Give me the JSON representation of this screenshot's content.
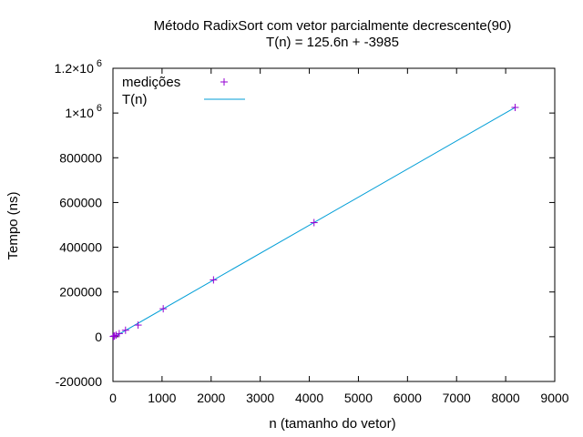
{
  "chart_data": {
    "type": "scatter",
    "title": "Método RadixSort com vetor parcialmente decrescente(90)",
    "subtitle": "T(n) = 125.6n + -3985",
    "xlabel": "n (tamanho do vetor)",
    "ylabel": "Tempo (ns)",
    "xlim": [
      0,
      9000
    ],
    "ylim": [
      -200000,
      1200000
    ],
    "x_ticks": [
      {
        "value": 0,
        "label": "0"
      },
      {
        "value": 1000,
        "label": "1000"
      },
      {
        "value": 2000,
        "label": "2000"
      },
      {
        "value": 3000,
        "label": "3000"
      },
      {
        "value": 4000,
        "label": "4000"
      },
      {
        "value": 5000,
        "label": "5000"
      },
      {
        "value": 6000,
        "label": "6000"
      },
      {
        "value": 7000,
        "label": "7000"
      },
      {
        "value": 8000,
        "label": "8000"
      },
      {
        "value": 9000,
        "label": "9000"
      }
    ],
    "y_ticks": [
      {
        "value": -200000,
        "label": "-200000"
      },
      {
        "value": 0,
        "label": "0"
      },
      {
        "value": 200000,
        "label": "200000"
      },
      {
        "value": 400000,
        "label": "400000"
      },
      {
        "value": 600000,
        "label": "600000"
      },
      {
        "value": 800000,
        "label": "800000"
      },
      {
        "value": 1000000,
        "label": "1×10",
        "exp": "6"
      },
      {
        "value": 1200000,
        "label": "1.2×10",
        "exp": "6"
      }
    ],
    "grid": false,
    "legend_position": "top-left",
    "series": [
      {
        "name": "medições",
        "kind": "points",
        "marker": "+",
        "color": "#9400d3",
        "x": [
          8,
          16,
          32,
          64,
          128,
          256,
          512,
          1024,
          2048,
          4096,
          8192
        ],
        "y": [
          1000,
          2000,
          3500,
          7000,
          14000,
          29000,
          52000,
          125000,
          254000,
          510000,
          1025000
        ]
      },
      {
        "name": "T(n)",
        "kind": "line",
        "color": "#009ed7",
        "slope": 125.6,
        "intercept": -3985,
        "x_range": [
          0,
          8192
        ]
      }
    ]
  }
}
